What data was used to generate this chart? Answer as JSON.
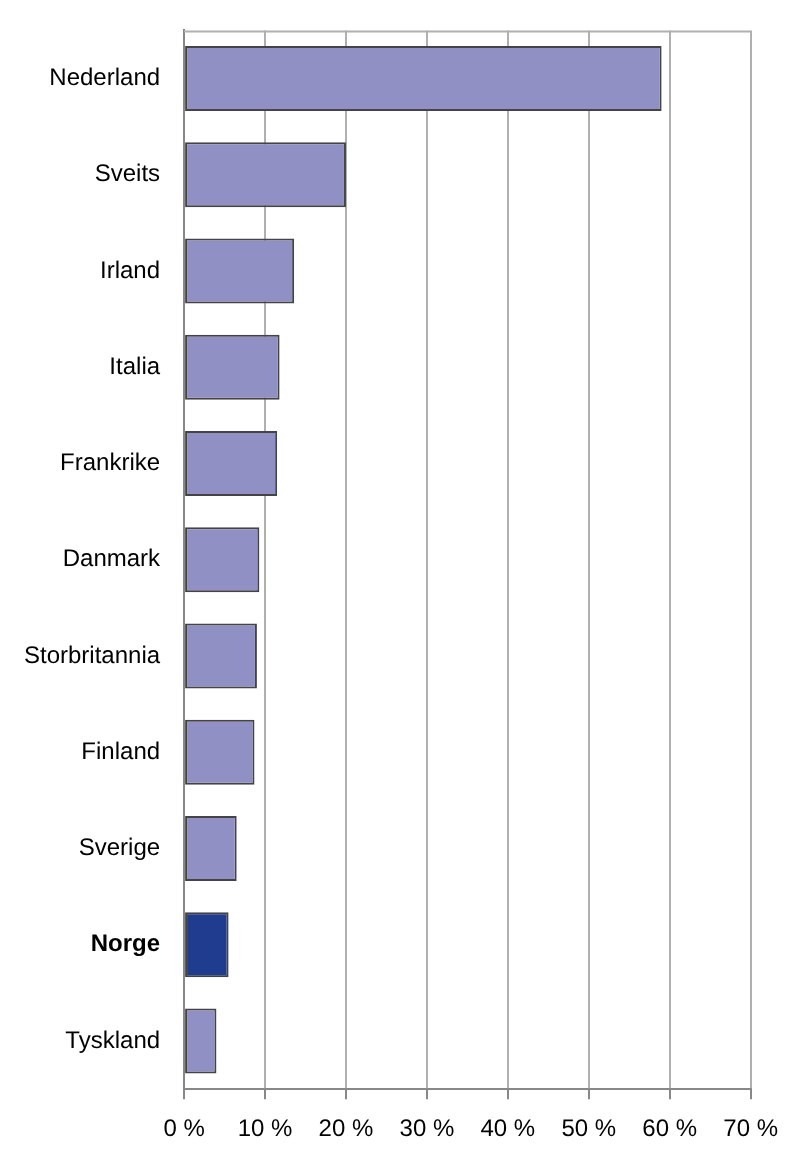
{
  "chart_data": {
    "type": "bar",
    "orientation": "horizontal",
    "categories": [
      "Nederland",
      "Sveits",
      "Irland",
      "Italia",
      "Frankrike",
      "Danmark",
      "Storbritannia",
      "Finland",
      "Sverige",
      "Norge",
      "Tyskland"
    ],
    "values": [
      59,
      20,
      13.6,
      11.8,
      11.5,
      9.3,
      9.0,
      8.7,
      6.5,
      5.5,
      4.0
    ],
    "colors": [
      "#9090c4",
      "#9090c4",
      "#9090c4",
      "#9090c4",
      "#9090c4",
      "#9090c4",
      "#9090c4",
      "#9090c4",
      "#9090c4",
      "#1f3c8f",
      "#9090c4"
    ],
    "xlim": [
      0,
      70
    ],
    "xticks": [
      {
        "value": 0,
        "label": "0 %"
      },
      {
        "value": 10,
        "label": "10 %"
      },
      {
        "value": 20,
        "label": "20 %"
      },
      {
        "value": 30,
        "label": "30 %"
      },
      {
        "value": 40,
        "label": "40 %"
      },
      {
        "value": 50,
        "label": "50 %"
      },
      {
        "value": 60,
        "label": "60 %"
      },
      {
        "value": 70,
        "label": "70 %"
      }
    ],
    "grid": "x",
    "legend": false
  }
}
